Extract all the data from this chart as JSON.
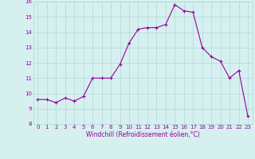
{
  "x": [
    0,
    1,
    2,
    3,
    4,
    5,
    6,
    7,
    8,
    9,
    10,
    11,
    12,
    13,
    14,
    15,
    16,
    17,
    18,
    19,
    20,
    21,
    22,
    23
  ],
  "y": [
    9.6,
    9.6,
    9.4,
    9.7,
    9.5,
    9.8,
    11.0,
    11.0,
    11.0,
    11.9,
    13.3,
    14.2,
    14.3,
    14.3,
    14.5,
    15.8,
    15.4,
    15.3,
    13.0,
    12.4,
    12.1,
    11.0,
    11.5,
    8.5
  ],
  "line_color": "#990099",
  "marker": "+",
  "marker_size": 3.5,
  "marker_lw": 0.8,
  "line_width": 0.8,
  "bg_color": "#d6f0f0",
  "grid_color": "#b0d8d8",
  "xlabel": "Windchill (Refroidissement éolien,°C)",
  "ylim": [
    8,
    16
  ],
  "xlim_min": -0.5,
  "xlim_max": 23.5,
  "yticks": [
    8,
    9,
    10,
    11,
    12,
    13,
    14,
    15,
    16
  ],
  "xticks": [
    0,
    1,
    2,
    3,
    4,
    5,
    6,
    7,
    8,
    9,
    10,
    11,
    12,
    13,
    14,
    15,
    16,
    17,
    18,
    19,
    20,
    21,
    22,
    23
  ],
  "axis_label_color": "#990099",
  "tick_color": "#990099",
  "tick_fontsize": 5.0,
  "xlabel_fontsize": 5.5,
  "grid_on": true
}
